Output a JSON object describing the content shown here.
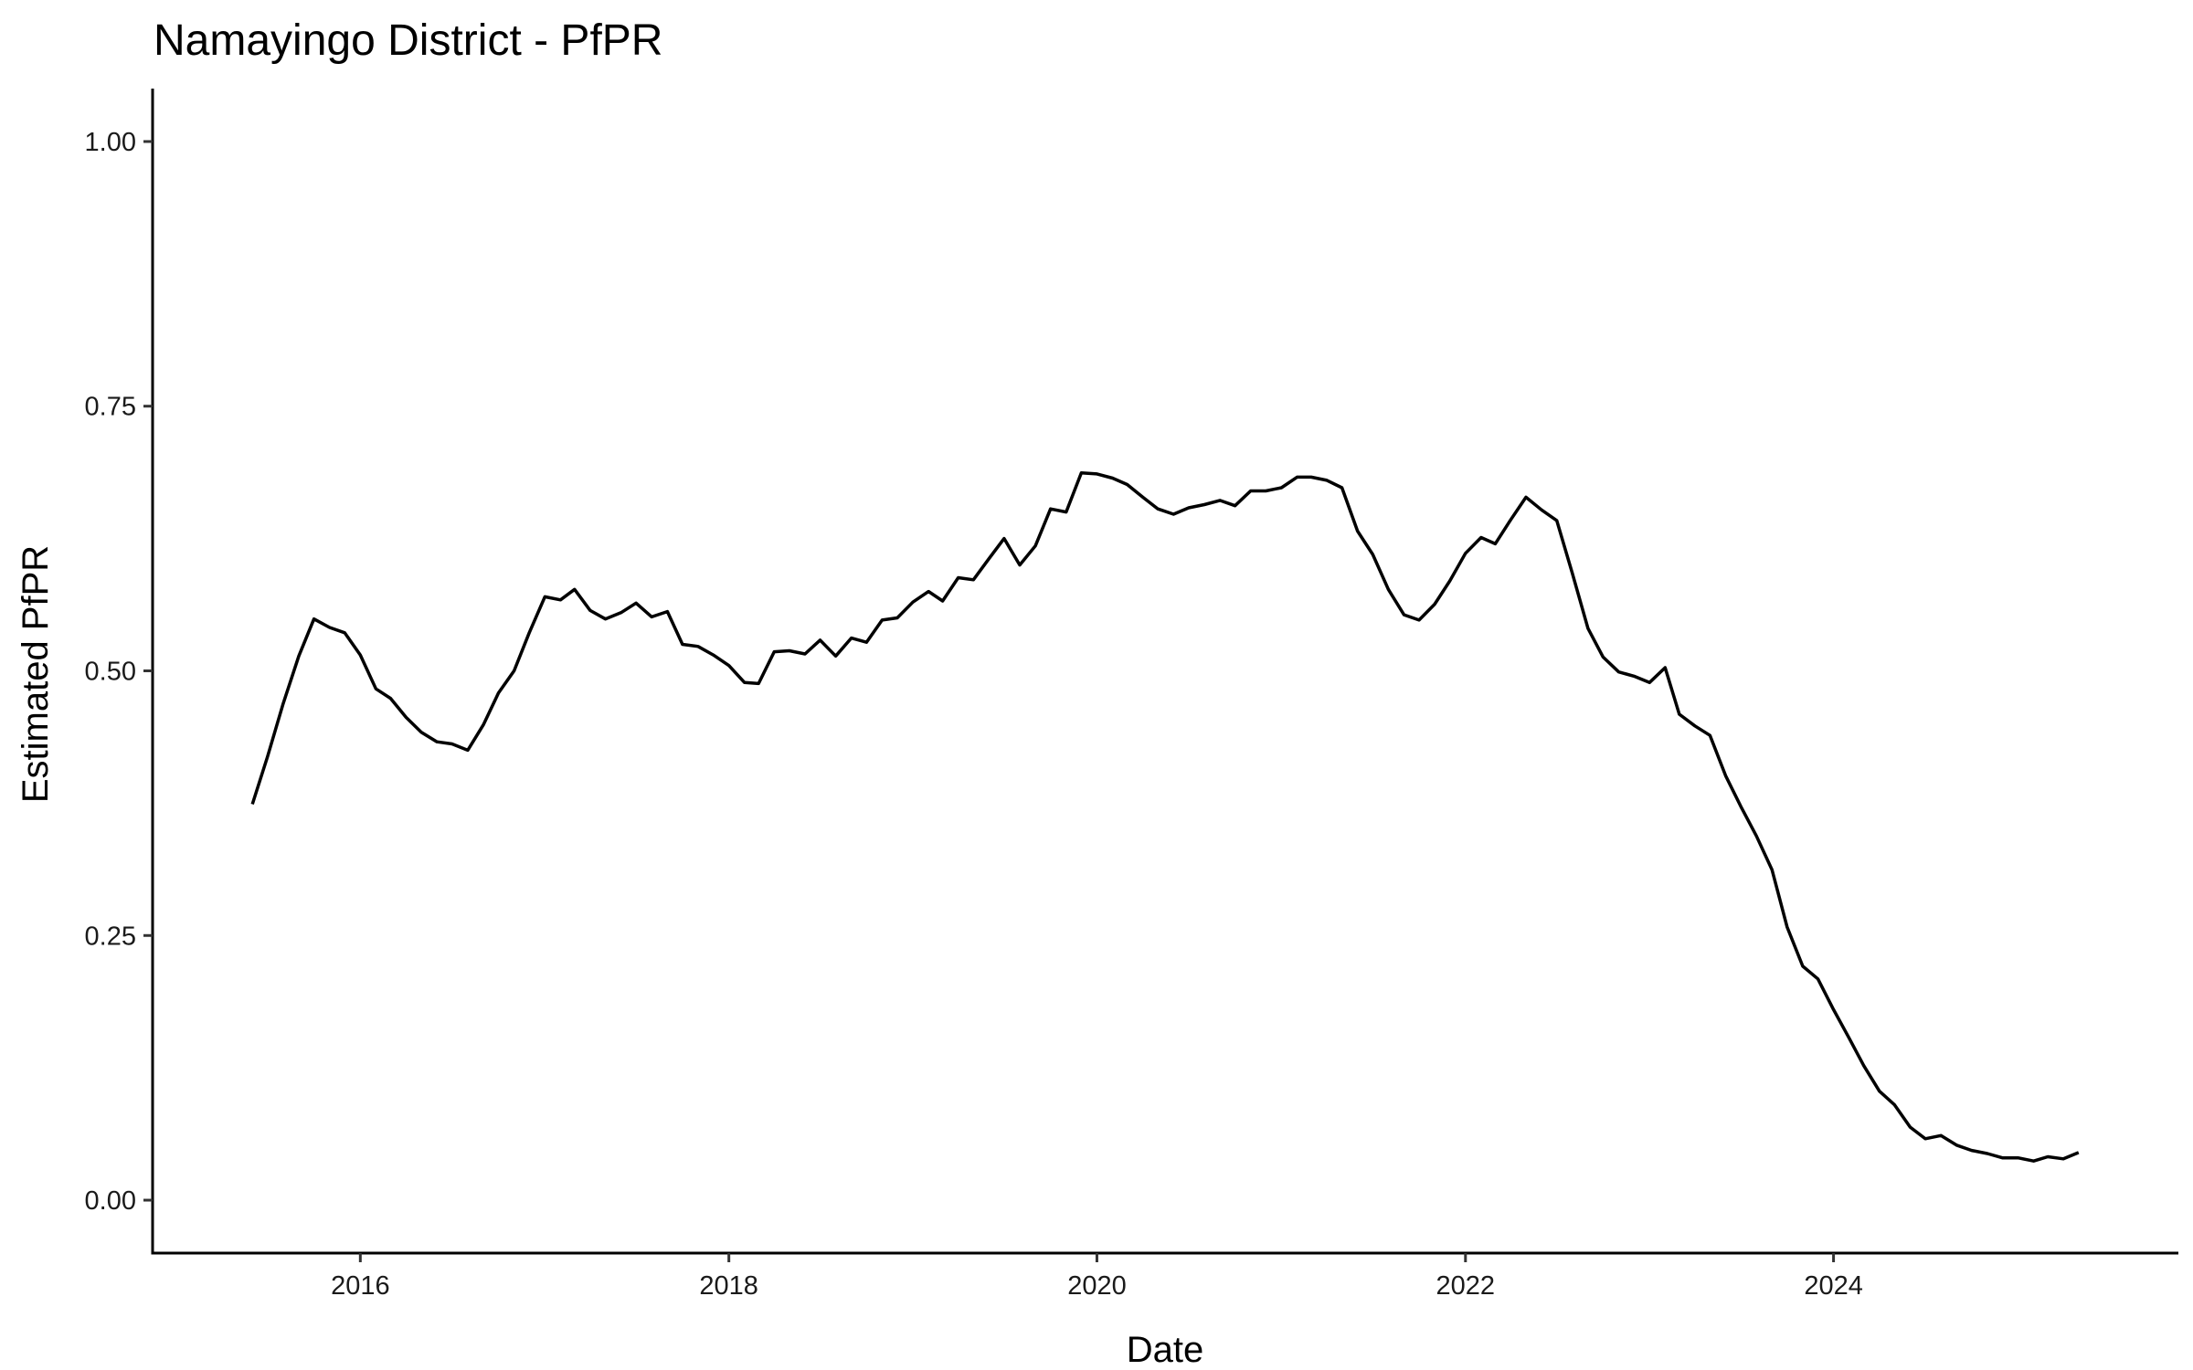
{
  "chart_data": {
    "type": "line",
    "title": "Namayingo District - PfPR",
    "xlabel": "Date",
    "ylabel": "Estimated PfPR",
    "xlim": [
      "2014-11-15",
      "2025-11-15"
    ],
    "ylim": [
      -0.05,
      1.05
    ],
    "x_ticks": [
      {
        "date": "2016-01-01",
        "label": "2016"
      },
      {
        "date": "2018-01-01",
        "label": "2018"
      },
      {
        "date": "2020-01-01",
        "label": "2020"
      },
      {
        "date": "2022-01-01",
        "label": "2022"
      },
      {
        "date": "2024-01-01",
        "label": "2024"
      }
    ],
    "y_ticks": [
      {
        "value": 0,
        "label": "0.00"
      },
      {
        "value": 0.25,
        "label": "0.25"
      },
      {
        "value": 0.5,
        "label": "0.50"
      },
      {
        "value": 0.75,
        "label": "0.75"
      },
      {
        "value": 1,
        "label": "1.00"
      }
    ],
    "grid": false,
    "line_color": "#000000",
    "series": [
      {
        "x": [
          "2015-06",
          "2015-07",
          "2015-08",
          "2015-09",
          "2015-10",
          "2015-11",
          "2015-12",
          "2016-01",
          "2016-02",
          "2016-03",
          "2016-04",
          "2016-05",
          "2016-06",
          "2016-07",
          "2016-08",
          "2016-09",
          "2016-10",
          "2016-11",
          "2016-12",
          "2017-01",
          "2017-02",
          "2017-03",
          "2017-04",
          "2017-05",
          "2017-06",
          "2017-07",
          "2017-08",
          "2017-09",
          "2017-10",
          "2017-11",
          "2017-12",
          "2018-01",
          "2018-02",
          "2018-03",
          "2018-04",
          "2018-05",
          "2018-06",
          "2018-07",
          "2018-08",
          "2018-09",
          "2018-10",
          "2018-11",
          "2018-12",
          "2019-01",
          "2019-02",
          "2019-03",
          "2019-04",
          "2019-05",
          "2019-06",
          "2019-07",
          "2019-08",
          "2019-09",
          "2019-10",
          "2019-11",
          "2019-12",
          "2020-01",
          "2020-02",
          "2020-03",
          "2020-04",
          "2020-05",
          "2020-06",
          "2020-07",
          "2020-08",
          "2020-09",
          "2020-10",
          "2020-11",
          "2020-12",
          "2021-01",
          "2021-02",
          "2021-03",
          "2021-04",
          "2021-05",
          "2021-06",
          "2021-07",
          "2021-08",
          "2021-09",
          "2021-10",
          "2021-11",
          "2021-12",
          "2022-01",
          "2022-02",
          "2022-03",
          "2022-04",
          "2022-05",
          "2022-06",
          "2022-07",
          "2022-08",
          "2022-09",
          "2022-10",
          "2022-11",
          "2022-12",
          "2023-01",
          "2023-02",
          "2023-03",
          "2023-04",
          "2023-05",
          "2023-06",
          "2023-07",
          "2023-08",
          "2023-09",
          "2023-10",
          "2023-11",
          "2023-12",
          "2024-01",
          "2024-02",
          "2024-03",
          "2024-04",
          "2024-05",
          "2024-06",
          "2024-07",
          "2024-08",
          "2024-09",
          "2024-10",
          "2024-11",
          "2024-12",
          "2025-01",
          "2025-02",
          "2025-03",
          "2025-04",
          "2025-05"
        ],
        "y": [
          0.374,
          0.419,
          0.469,
          0.514,
          0.549,
          0.541,
          0.536,
          0.515,
          0.483,
          0.474,
          0.456,
          0.442,
          0.433,
          0.431,
          0.425,
          0.449,
          0.479,
          0.5,
          0.536,
          0.57,
          0.567,
          0.577,
          0.557,
          0.549,
          0.555,
          0.564,
          0.551,
          0.556,
          0.525,
          0.523,
          0.515,
          0.505,
          0.489,
          0.488,
          0.518,
          0.519,
          0.516,
          0.529,
          0.514,
          0.531,
          0.527,
          0.548,
          0.55,
          0.565,
          0.575,
          0.566,
          0.588,
          0.586,
          0.606,
          0.625,
          0.6,
          0.618,
          0.653,
          0.65,
          0.687,
          0.686,
          0.682,
          0.676,
          0.664,
          0.653,
          0.648,
          0.654,
          0.657,
          0.661,
          0.656,
          0.67,
          0.67,
          0.673,
          0.683,
          0.683,
          0.68,
          0.673,
          0.632,
          0.61,
          0.577,
          0.553,
          0.548,
          0.563,
          0.585,
          0.611,
          0.626,
          0.62,
          0.643,
          0.664,
          0.652,
          0.642,
          0.592,
          0.54,
          0.513,
          0.499,
          0.495,
          0.489,
          0.503,
          0.459,
          0.448,
          0.439,
          0.401,
          0.372,
          0.344,
          0.312,
          0.258,
          0.221,
          0.209,
          0.18,
          0.153,
          0.127,
          0.103,
          0.09,
          0.069,
          0.058,
          0.061,
          0.052,
          0.047,
          0.044,
          0.04,
          0.04,
          0.037,
          0.041,
          0.039,
          0.045
        ]
      }
    ]
  }
}
